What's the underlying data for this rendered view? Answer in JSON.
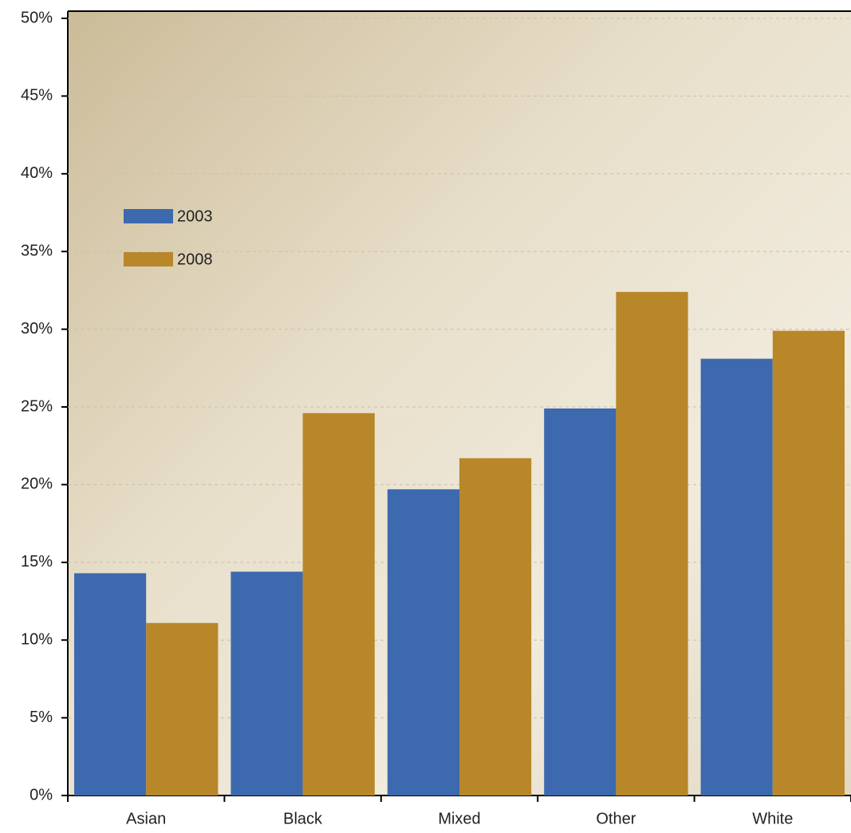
{
  "chart_data": {
    "type": "bar",
    "categories": [
      "Asian",
      "Black",
      "Mixed",
      "Other",
      "White"
    ],
    "series": [
      {
        "name": "2003",
        "color": "#3d69ae",
        "values": [
          14.3,
          14.4,
          19.7,
          24.9,
          28.1
        ]
      },
      {
        "name": "2008",
        "color": "#b8872a",
        "values": [
          11.1,
          24.6,
          21.7,
          32.4,
          29.9
        ]
      }
    ],
    "ylim": [
      0,
      50
    ],
    "yticks": [
      {
        "value": 0,
        "label": "0%"
      },
      {
        "value": 5,
        "label": "5%"
      },
      {
        "value": 10,
        "label": "10%"
      },
      {
        "value": 15,
        "label": "15%"
      },
      {
        "value": 20,
        "label": "20%"
      },
      {
        "value": 25,
        "label": "25%"
      },
      {
        "value": 30,
        "label": "30%"
      },
      {
        "value": 35,
        "label": "35%"
      },
      {
        "value": 40,
        "label": "40%"
      },
      {
        "value": 45,
        "label": "45%"
      },
      {
        "value": 50,
        "label": "50%"
      }
    ],
    "grid": true,
    "legend": "upper left"
  }
}
